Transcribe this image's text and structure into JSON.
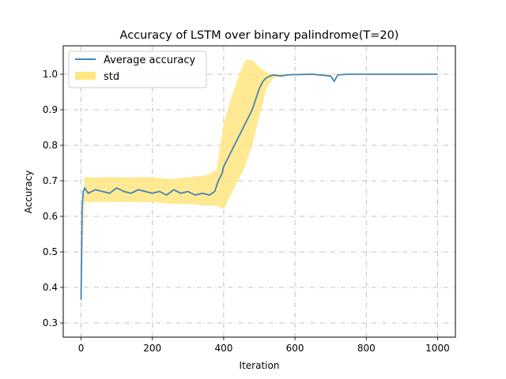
{
  "chart_data": {
    "type": "line",
    "title": "Accuracy of LSTM over binary palindrome(T=20)",
    "xlabel": "Iteration",
    "ylabel": "Accuracy",
    "xlim": [
      -50,
      1050
    ],
    "ylim": [
      0.26,
      1.08
    ],
    "xticks": [
      0,
      200,
      400,
      600,
      800,
      1000
    ],
    "yticks": [
      0.3,
      0.4,
      0.5,
      0.6,
      0.7,
      0.8,
      0.9,
      1.0
    ],
    "xtick_labels": [
      "0",
      "200",
      "400",
      "600",
      "800",
      "1000"
    ],
    "ytick_labels": [
      "0.3",
      "0.4",
      "0.5",
      "0.6",
      "0.7",
      "0.8",
      "0.9",
      "1.0"
    ],
    "grid": true,
    "grid_style": "dashdot",
    "legend_position": "top-left",
    "series": [
      {
        "name": "Average accuracy",
        "kind": "line",
        "color": "#4682b4",
        "x": [
          0,
          3,
          6,
          10,
          20,
          30,
          40,
          60,
          80,
          100,
          120,
          140,
          160,
          180,
          200,
          220,
          240,
          260,
          280,
          300,
          320,
          340,
          360,
          375,
          385,
          395,
          400,
          410,
          420,
          430,
          440,
          450,
          460,
          470,
          480,
          490,
          500,
          510,
          520,
          530,
          540,
          560,
          580,
          600,
          650,
          700,
          710,
          720,
          750,
          800,
          850,
          900,
          950,
          1000
        ],
        "y": [
          0.365,
          0.62,
          0.67,
          0.68,
          0.665,
          0.67,
          0.675,
          0.67,
          0.665,
          0.68,
          0.67,
          0.665,
          0.675,
          0.67,
          0.665,
          0.67,
          0.66,
          0.675,
          0.665,
          0.67,
          0.66,
          0.665,
          0.66,
          0.67,
          0.7,
          0.72,
          0.74,
          0.76,
          0.78,
          0.8,
          0.82,
          0.84,
          0.86,
          0.88,
          0.9,
          0.93,
          0.96,
          0.98,
          0.99,
          0.995,
          0.998,
          0.995,
          0.998,
          0.999,
          1.0,
          0.995,
          0.98,
          0.998,
          1.0,
          1.0,
          1.0,
          1.0,
          1.0,
          1.0
        ]
      },
      {
        "name": "std",
        "kind": "band",
        "color": "#ffe680",
        "x": [
          0,
          10,
          50,
          100,
          150,
          200,
          250,
          300,
          350,
          380,
          400,
          420,
          440,
          460,
          480,
          500,
          520,
          540,
          560,
          600,
          1000
        ],
        "lower": [
          0.365,
          0.64,
          0.64,
          0.64,
          0.64,
          0.64,
          0.635,
          0.635,
          0.63,
          0.63,
          0.62,
          0.66,
          0.7,
          0.74,
          0.8,
          0.88,
          0.96,
          0.99,
          0.995,
          0.998,
          1.0
        ],
        "upper": [
          0.365,
          0.71,
          0.71,
          0.71,
          0.71,
          0.71,
          0.705,
          0.71,
          0.715,
          0.73,
          0.86,
          0.93,
          0.99,
          1.04,
          1.04,
          1.02,
          1.005,
          1.0,
          1.0,
          1.0,
          1.0
        ]
      }
    ]
  }
}
